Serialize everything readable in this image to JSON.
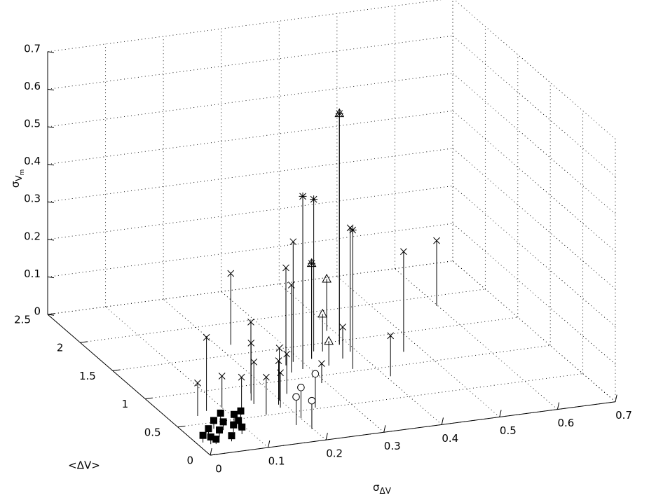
{
  "chart_data": {
    "type": "stem3",
    "xlabel": "σ",
    "xlabel_sub": "ΔV",
    "ylabel": "<ΔV>",
    "zlabel": "σ",
    "zlabel_sub": "V",
    "zlabel_subsub": "m",
    "xlim": [
      0,
      0.7
    ],
    "ylim": [
      0,
      2.5
    ],
    "zlim": [
      0,
      0.7
    ],
    "xticks": [
      0,
      0.1,
      0.2,
      0.3,
      0.4,
      0.5,
      0.6,
      0.7
    ],
    "yticks": [
      0,
      0.5,
      1,
      1.5,
      2,
      2.5
    ],
    "zticks": [
      0,
      0.1,
      0.2,
      0.3,
      0.4,
      0.5,
      0.6,
      0.7
    ],
    "grid": true,
    "series": [
      {
        "marker": "x",
        "color": "#000000",
        "x": [
          0.049,
          0.071,
          0.222,
          0.1,
          0.117,
          0.168,
          0.156,
          0.154,
          0.154,
          0.198,
          0.1875,
          0.19,
          0.221,
          0.269,
          0.265,
          0.286,
          0.292,
          0.366,
          0.389,
          0.407,
          0.469,
          0.598
        ],
        "y": [
          0.63,
          0.69,
          1.66,
          0.71,
          0.56,
          0.87,
          0.76,
          0.7,
          0.51,
          0.7,
          0.59,
          0.64,
          0.79,
          1.23,
          1.11,
          1.27,
          0.885,
          1.22,
          1.31,
          0.85,
          1.2,
          1.84
        ],
        "z": [
          0.088,
          0.196,
          0.19,
          0.084,
          0.1,
          0.19,
          0.153,
          0.112,
          0.1,
          0.14,
          0.093,
          0.117,
          0.106,
          0.26,
          0.233,
          0.32,
          0.052,
          0.084,
          0.33,
          0.108,
          0.267,
          0.174
        ]
      },
      {
        "marker": "*",
        "color": "#000000",
        "x": [
          0.288,
          0.335,
          0.363,
          0.385,
          0.319
        ],
        "y": [
          1.14,
          1.39,
          1.04,
          1.44,
          1.28
        ],
        "z": [
          0.46,
          0.405,
          0.37,
          0.616,
          0.254
        ]
      },
      {
        "marker": "^",
        "color": "#000000",
        "x": [
          0.385,
          0.319,
          0.39,
          0.348,
          0.333
        ],
        "y": [
          1.44,
          1.28,
          1.68,
          1.37,
          1.14
        ],
        "z": [
          0.616,
          0.254,
          0.138,
          0.1,
          0.065
        ]
      },
      {
        "marker": "o",
        "color": "#000000",
        "x": [
          0.2,
          0.181,
          0.24,
          0.198
        ],
        "y": [
          0.385,
          0.29,
          0.52,
          0.2
        ],
        "z": [
          0.082,
          0.075,
          0.09,
          0.075
        ]
      },
      {
        "marker": "s",
        "color": "#000000",
        "x": [
          0.011,
          0.025,
          0.02,
          0.028,
          0.051,
          0.074,
          0.063,
          0.045,
          0.056,
          0.075,
          0.094,
          0.11,
          0.084,
          0.088
        ],
        "y": [
          0.21,
          0.25,
          0.17,
          0.16,
          0.4,
          0.5,
          0.36,
          0.26,
          0.17,
          0.31,
          0.47,
          0.51,
          0.26,
          0.35
        ],
        "z": [
          0.019,
          0.028,
          0.019,
          0.013,
          0.022,
          0.022,
          0.022,
          0.019,
          0.015,
          0.019,
          0.019,
          0.019,
          0.019,
          0.022
        ]
      }
    ]
  }
}
